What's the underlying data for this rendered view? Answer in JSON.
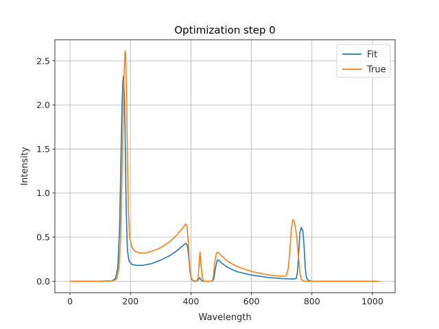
{
  "chart_data": {
    "type": "line",
    "title": "Optimization step 0",
    "xlabel": "Wavelength",
    "ylabel": "Intensity",
    "xlim": [
      -50,
      1075
    ],
    "ylim": [
      -0.13,
      2.74
    ],
    "xticks": [
      0,
      200,
      400,
      600,
      800,
      1000
    ],
    "xtick_labels": [
      "0",
      "200",
      "400",
      "600",
      "800",
      "1000"
    ],
    "yticks": [
      0.0,
      0.5,
      1.0,
      1.5,
      2.0,
      2.5
    ],
    "ytick_labels": [
      "0.0",
      "0.5",
      "1.0",
      "1.5",
      "2.0",
      "2.5"
    ],
    "grid": true,
    "legend_position": "top-right",
    "series": [
      {
        "name": "Fit",
        "color": "#1f77b4",
        "points": [
          [
            0,
            0.0
          ],
          [
            100,
            0.0
          ],
          [
            140,
            0.005
          ],
          [
            150,
            0.03
          ],
          [
            158,
            0.15
          ],
          [
            164,
            0.6
          ],
          [
            168,
            1.3
          ],
          [
            172,
            2.0
          ],
          [
            175,
            2.28
          ],
          [
            177,
            2.33
          ],
          [
            180,
            2.1
          ],
          [
            183,
            1.5
          ],
          [
            186,
            0.8
          ],
          [
            190,
            0.35
          ],
          [
            195,
            0.23
          ],
          [
            205,
            0.19
          ],
          [
            220,
            0.18
          ],
          [
            240,
            0.18
          ],
          [
            270,
            0.2
          ],
          [
            300,
            0.24
          ],
          [
            330,
            0.29
          ],
          [
            355,
            0.35
          ],
          [
            372,
            0.4
          ],
          [
            383,
            0.43
          ],
          [
            388,
            0.41
          ],
          [
            392,
            0.3
          ],
          [
            397,
            0.1
          ],
          [
            402,
            0.02
          ],
          [
            410,
            0.0
          ],
          [
            420,
            0.0
          ],
          [
            425,
            0.02
          ],
          [
            429,
            0.04
          ],
          [
            433,
            0.02
          ],
          [
            438,
            0.0
          ],
          [
            470,
            0.0
          ],
          [
            476,
            0.03
          ],
          [
            481,
            0.15
          ],
          [
            487,
            0.24
          ],
          [
            492,
            0.24
          ],
          [
            500,
            0.21
          ],
          [
            520,
            0.16
          ],
          [
            550,
            0.11
          ],
          [
            600,
            0.07
          ],
          [
            650,
            0.045
          ],
          [
            700,
            0.03
          ],
          [
            740,
            0.025
          ],
          [
            748,
            0.03
          ],
          [
            752,
            0.1
          ],
          [
            756,
            0.3
          ],
          [
            760,
            0.55
          ],
          [
            765,
            0.61
          ],
          [
            770,
            0.57
          ],
          [
            774,
            0.4
          ],
          [
            778,
            0.15
          ],
          [
            782,
            0.04
          ],
          [
            788,
            0.01
          ],
          [
            800,
            0.0
          ],
          [
            1023,
            0.0
          ]
        ]
      },
      {
        "name": "True",
        "color": "#ff7f0e",
        "points": [
          [
            0,
            0.0
          ],
          [
            110,
            0.0
          ],
          [
            145,
            0.005
          ],
          [
            155,
            0.03
          ],
          [
            162,
            0.15
          ],
          [
            167,
            0.45
          ],
          [
            172,
            1.2
          ],
          [
            176,
            1.9
          ],
          [
            179,
            2.35
          ],
          [
            182,
            2.61
          ],
          [
            184,
            2.58
          ],
          [
            187,
            2.1
          ],
          [
            190,
            1.4
          ],
          [
            193,
            0.8
          ],
          [
            197,
            0.5
          ],
          [
            205,
            0.38
          ],
          [
            215,
            0.34
          ],
          [
            230,
            0.32
          ],
          [
            250,
            0.32
          ],
          [
            270,
            0.34
          ],
          [
            300,
            0.38
          ],
          [
            330,
            0.45
          ],
          [
            355,
            0.53
          ],
          [
            372,
            0.6
          ],
          [
            383,
            0.65
          ],
          [
            387,
            0.62
          ],
          [
            391,
            0.45
          ],
          [
            395,
            0.2
          ],
          [
            400,
            0.05
          ],
          [
            405,
            0.01
          ],
          [
            420,
            0.0
          ],
          [
            424,
            0.05
          ],
          [
            428,
            0.25
          ],
          [
            430,
            0.33
          ],
          [
            433,
            0.2
          ],
          [
            437,
            0.05
          ],
          [
            442,
            0.0
          ],
          [
            470,
            0.0
          ],
          [
            474,
            0.05
          ],
          [
            478,
            0.2
          ],
          [
            484,
            0.32
          ],
          [
            490,
            0.33
          ],
          [
            500,
            0.29
          ],
          [
            520,
            0.23
          ],
          [
            550,
            0.17
          ],
          [
            600,
            0.11
          ],
          [
            650,
            0.075
          ],
          [
            700,
            0.055
          ],
          [
            715,
            0.06
          ],
          [
            722,
            0.15
          ],
          [
            727,
            0.35
          ],
          [
            732,
            0.6
          ],
          [
            737,
            0.7
          ],
          [
            742,
            0.68
          ],
          [
            748,
            0.55
          ],
          [
            755,
            0.3
          ],
          [
            760,
            0.1
          ],
          [
            765,
            0.02
          ],
          [
            775,
            0.0
          ],
          [
            1023,
            0.0
          ]
        ]
      }
    ]
  }
}
